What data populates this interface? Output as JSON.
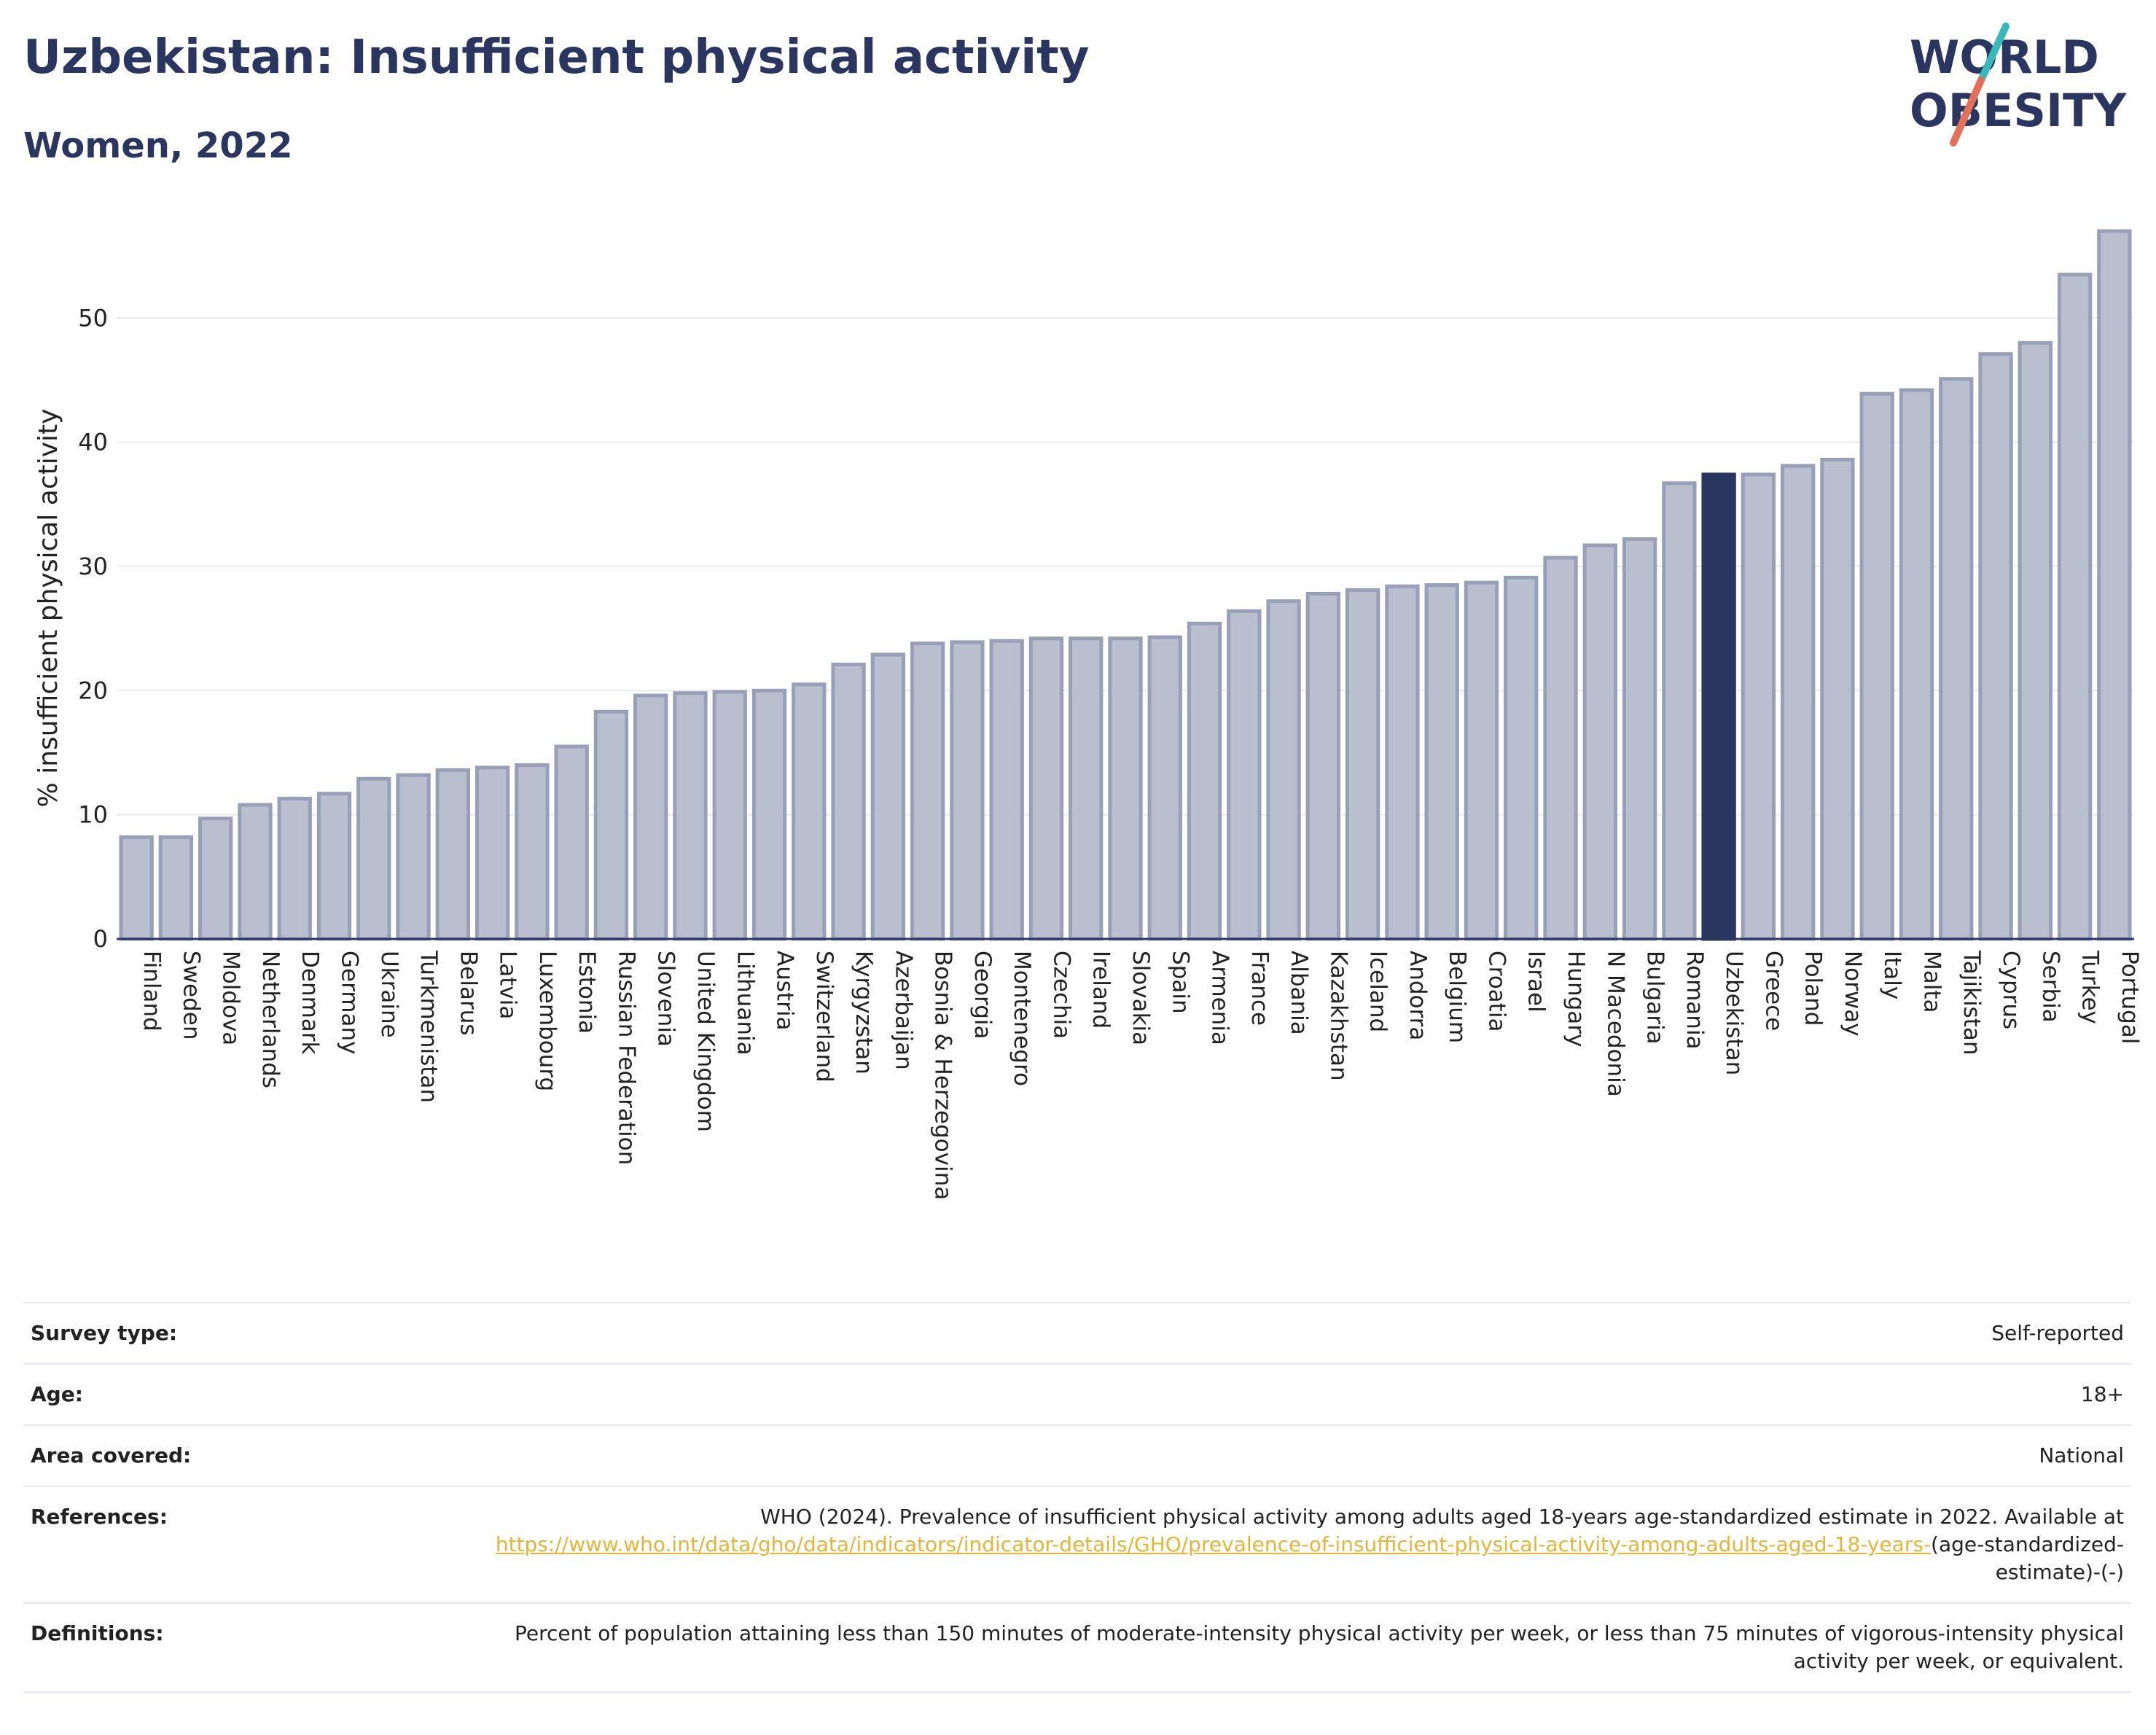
{
  "header": {
    "title": "Uzbekistan: Insufficient physical activity",
    "subtitle": "Women, 2022"
  },
  "logo": {
    "line1": "WORLD",
    "line2": "OBESITY",
    "text_color": "#2a3560",
    "slash_top_color": "#3ab8b8",
    "slash_bottom_color": "#e36f5a"
  },
  "chart_data": {
    "type": "bar",
    "ylabel": "% insufficient physical activity",
    "xlabel": "",
    "ylim": [
      0,
      58
    ],
    "yticks": [
      0,
      10,
      20,
      30,
      40,
      50
    ],
    "grid": true,
    "highlight": "Uzbekistan",
    "colors": {
      "bar": "#b9bfce",
      "bar_stroke": "#98a0b8",
      "highlight": "#2a3560"
    },
    "categories": [
      "Finland",
      "Sweden",
      "Moldova",
      "Netherlands",
      "Denmark",
      "Germany",
      "Ukraine",
      "Turkmenistan",
      "Belarus",
      "Latvia",
      "Luxembourg",
      "Estonia",
      "Russian Federation",
      "Slovenia",
      "United Kingdom",
      "Lithuania",
      "Austria",
      "Switzerland",
      "Kyrgyzstan",
      "Azerbaijan",
      "Bosnia & Herzegovina",
      "Georgia",
      "Montenegro",
      "Czechia",
      "Ireland",
      "Slovakia",
      "Spain",
      "Armenia",
      "France",
      "Albania",
      "Kazakhstan",
      "Iceland",
      "Andorra",
      "Belgium",
      "Croatia",
      "Israel",
      "Hungary",
      "N Macedonia",
      "Bulgaria",
      "Romania",
      "Uzbekistan",
      "Greece",
      "Poland",
      "Norway",
      "Italy",
      "Malta",
      "Tajikistan",
      "Cyprus",
      "Serbia",
      "Turkey",
      "Portugal"
    ],
    "values": [
      8.2,
      8.2,
      9.7,
      10.8,
      11.3,
      11.7,
      12.9,
      13.2,
      13.6,
      13.8,
      14.0,
      15.5,
      18.3,
      19.6,
      19.8,
      19.9,
      20.0,
      20.5,
      22.1,
      22.9,
      23.8,
      23.9,
      24.0,
      24.2,
      24.2,
      24.2,
      24.3,
      25.4,
      26.4,
      27.2,
      27.8,
      28.1,
      28.4,
      28.5,
      28.7,
      29.1,
      30.7,
      31.7,
      32.2,
      36.7,
      37.4,
      37.4,
      38.1,
      38.6,
      43.9,
      44.2,
      45.1,
      47.1,
      48.0,
      53.5,
      57.0
    ]
  },
  "info": {
    "survey_type": {
      "label": "Survey type:",
      "value": "Self-reported"
    },
    "age": {
      "label": "Age:",
      "value": "18+"
    },
    "area": {
      "label": "Area covered:",
      "value": "National"
    },
    "references": {
      "label": "References:",
      "text": "WHO (2024). Prevalence of insufficient physical activity among adults aged 18-years age-standardized estimate in 2022. Available at",
      "link": "https://www.who.int/data/gho/data/indicators/indicator-details/GHO/prevalence-of-insufficient-physical-activity-among-adults-aged-18-years-",
      "suffix": "(age-standardized-estimate)-(-)"
    },
    "definitions": {
      "label": "Definitions:",
      "value": "Percent of population attaining less than 150 minutes of moderate-intensity physical activity per week, or less than 75 minutes of vigorous-intensity physical activity per week, or equivalent."
    }
  }
}
